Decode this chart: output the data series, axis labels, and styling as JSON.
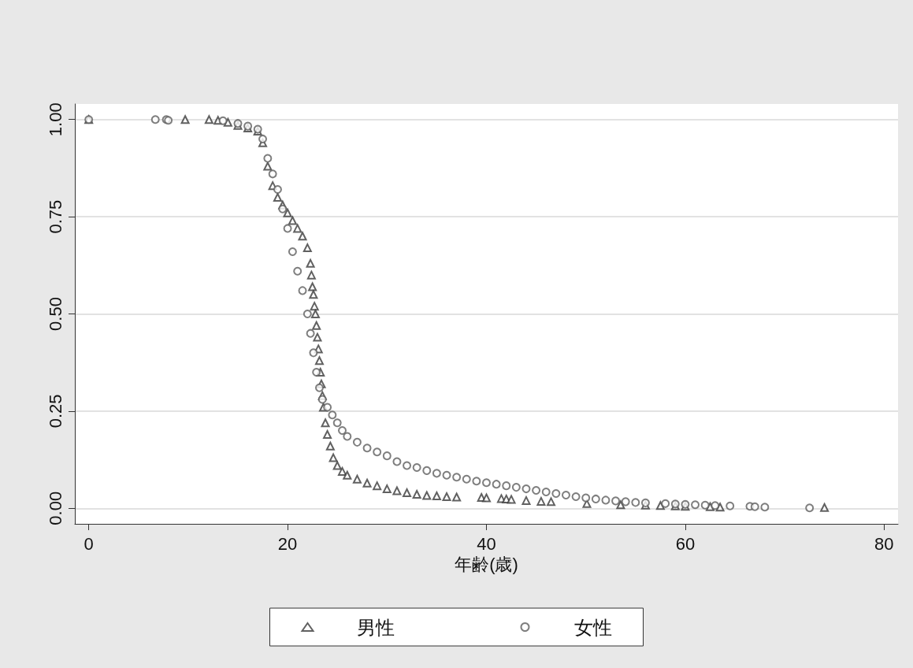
{
  "chart_data": {
    "type": "scatter",
    "xlabel": "年齢(歳)",
    "xlim": [
      -1.4,
      81.4
    ],
    "xticks": [
      0,
      20,
      40,
      60,
      80
    ],
    "ylim": [
      -0.04,
      1.04
    ],
    "yticks": [
      {
        "value": 0,
        "label": "0.00"
      },
      {
        "value": 0.25,
        "label": "0.25"
      },
      {
        "value": 0.5,
        "label": "0.50"
      },
      {
        "value": 0.75,
        "label": "0.75"
      },
      {
        "value": 1,
        "label": "1.00"
      }
    ],
    "grid": "y",
    "legend": "bottom",
    "series": [
      {
        "name": "男性",
        "color": "#3a3a3a",
        "marker": "triangle",
        "x": [
          0,
          9.7,
          12.1,
          13,
          14,
          15,
          16,
          17,
          17.5,
          18,
          18.5,
          19,
          19.5,
          20,
          20.5,
          21,
          21.5,
          22,
          22.3,
          22.4,
          22.5,
          22.6,
          22.7,
          22.8,
          22.9,
          23,
          23.1,
          23.2,
          23.3,
          23.4,
          23.5,
          23.6,
          23.8,
          24,
          24.3,
          24.6,
          25,
          25.5,
          26,
          27,
          28,
          29,
          30,
          31,
          32,
          33,
          34,
          35,
          36,
          37,
          39.5,
          40,
          41.5,
          42,
          42.5,
          44,
          45.5,
          46.5,
          50.1,
          53.5,
          56,
          57.5,
          59,
          60,
          62.5,
          63.5,
          74
        ],
        "values": [
          1,
          1,
          1,
          0.998,
          0.993,
          0.985,
          0.978,
          0.97,
          0.94,
          0.88,
          0.83,
          0.8,
          0.78,
          0.76,
          0.74,
          0.72,
          0.7,
          0.67,
          0.63,
          0.6,
          0.57,
          0.55,
          0.52,
          0.5,
          0.47,
          0.44,
          0.41,
          0.38,
          0.35,
          0.32,
          0.29,
          0.26,
          0.22,
          0.19,
          0.16,
          0.13,
          0.11,
          0.095,
          0.085,
          0.075,
          0.065,
          0.058,
          0.05,
          0.045,
          0.04,
          0.036,
          0.033,
          0.032,
          0.03,
          0.029,
          0.028,
          0.027,
          0.025,
          0.024,
          0.023,
          0.02,
          0.018,
          0.017,
          0.012,
          0.009,
          0.008,
          0.007,
          0.006,
          0.005,
          0.004,
          0.003,
          0.002
        ]
      },
      {
        "name": "女性",
        "color": "#5e5e5e",
        "marker": "circle",
        "x": [
          0,
          6.7,
          7.8,
          8,
          13.5,
          15,
          16,
          17,
          17.5,
          18,
          18.5,
          19,
          19.5,
          20,
          20.5,
          21,
          21.5,
          22,
          22.3,
          22.6,
          22.9,
          23.2,
          23.5,
          24,
          24.5,
          25,
          25.5,
          26,
          27,
          28,
          29,
          30,
          31,
          32,
          33,
          34,
          35,
          36,
          37,
          38,
          39,
          40,
          41,
          42,
          43,
          44,
          45,
          46,
          47,
          48,
          49,
          50,
          51,
          52,
          53,
          54,
          55,
          56,
          58,
          59,
          60,
          61,
          62,
          63,
          64.5,
          66.5,
          67,
          68,
          72.5
        ],
        "values": [
          1,
          1,
          1,
          0.998,
          0.997,
          0.99,
          0.983,
          0.975,
          0.95,
          0.9,
          0.86,
          0.82,
          0.77,
          0.72,
          0.66,
          0.61,
          0.56,
          0.5,
          0.45,
          0.4,
          0.35,
          0.31,
          0.28,
          0.26,
          0.24,
          0.22,
          0.2,
          0.185,
          0.17,
          0.155,
          0.145,
          0.135,
          0.12,
          0.11,
          0.105,
          0.097,
          0.09,
          0.085,
          0.08,
          0.075,
          0.07,
          0.066,
          0.062,
          0.058,
          0.054,
          0.05,
          0.046,
          0.042,
          0.038,
          0.034,
          0.03,
          0.027,
          0.024,
          0.021,
          0.019,
          0.017,
          0.015,
          0.014,
          0.012,
          0.011,
          0.01,
          0.009,
          0.008,
          0.007,
          0.006,
          0.005,
          0.004,
          0.003,
          0.001
        ]
      }
    ]
  }
}
